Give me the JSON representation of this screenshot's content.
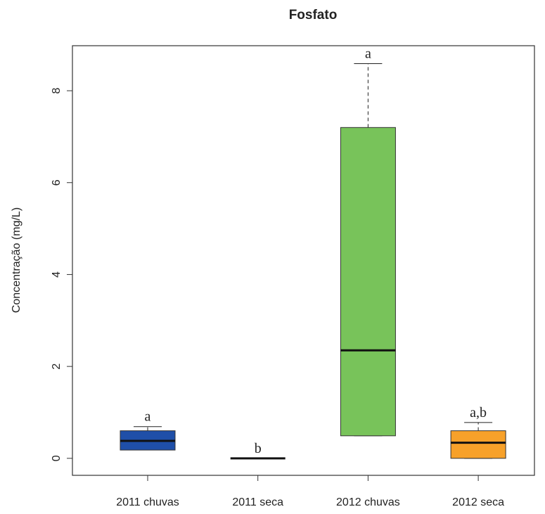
{
  "chart_data": {
    "type": "box",
    "title": "Fosfato",
    "y_label": "Concentração (mg/L)",
    "categories": [
      "2011 chuvas",
      "2011 seca",
      "2012 chuvas",
      "2012 seca"
    ],
    "boxes": [
      {
        "min": 0.18,
        "q1": 0.18,
        "median": 0.38,
        "q3": 0.6,
        "max": 0.69,
        "color": "#1f4fa8"
      },
      {
        "min": 0,
        "q1": 0,
        "median": 0,
        "q3": 0,
        "max": 0,
        "color": "#1a1a1a"
      },
      {
        "min": 0.49,
        "q1": 0.49,
        "median": 2.35,
        "q3": 7.2,
        "max": 8.59,
        "color": "#78c35a"
      },
      {
        "min": 0,
        "q1": 0,
        "median": 0.34,
        "q3": 0.6,
        "max": 0.78,
        "color": "#f7a12a"
      }
    ],
    "annotations": [
      "a",
      "b",
      "a",
      "a,b"
    ],
    "ylim": [
      -0.37,
      8.98
    ],
    "yticks": [
      0,
      2,
      4,
      6,
      8
    ]
  }
}
